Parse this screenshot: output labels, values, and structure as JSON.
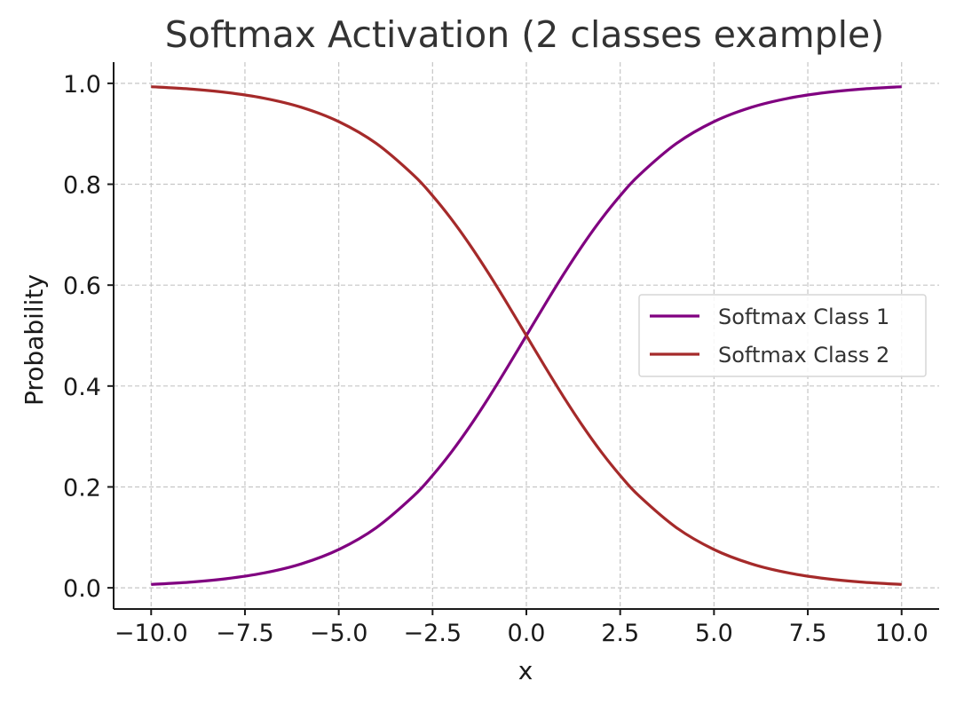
{
  "chart_data": {
    "type": "line",
    "title": "Softmax Activation (2 classes example)",
    "xlabel": "x",
    "ylabel": "Probability",
    "xlim": [
      -11,
      11
    ],
    "ylim": [
      -0.042,
      1.042
    ],
    "grid": true,
    "legend_position": "center-right",
    "x_ticks": [
      -10.0,
      -7.5,
      -5.0,
      -2.5,
      0.0,
      2.5,
      5.0,
      7.5,
      10.0
    ],
    "x_tick_labels": [
      "−10.0",
      "−7.5",
      "−5.0",
      "−2.5",
      "0.0",
      "2.5",
      "5.0",
      "7.5",
      "10.0"
    ],
    "y_ticks": [
      0.0,
      0.2,
      0.4,
      0.6,
      0.8,
      1.0
    ],
    "y_tick_labels": [
      "0.0",
      "0.2",
      "0.4",
      "0.6",
      "0.8",
      "1.0"
    ],
    "x": [
      -10.0,
      -9.0,
      -8.0,
      -7.0,
      -6.0,
      -5.0,
      -4.0,
      -3.0,
      -2.5,
      -2.0,
      -1.5,
      -1.0,
      -0.5,
      0.0,
      0.5,
      1.0,
      1.5,
      2.0,
      2.5,
      3.0,
      4.0,
      5.0,
      6.0,
      7.0,
      8.0,
      9.0,
      10.0
    ],
    "series": [
      {
        "name": "Softmax Class 1",
        "color": "#800080",
        "values": [
          0.0067,
          0.011,
          0.018,
          0.0293,
          0.0474,
          0.0759,
          0.1192,
          0.1824,
          0.2227,
          0.2689,
          0.3208,
          0.3775,
          0.4378,
          0.5,
          0.5622,
          0.6225,
          0.6792,
          0.7311,
          0.7773,
          0.8176,
          0.8808,
          0.9241,
          0.9526,
          0.9707,
          0.982,
          0.989,
          0.9933
        ]
      },
      {
        "name": "Softmax Class 2",
        "color": "#A52A2A",
        "values": [
          0.9933,
          0.989,
          0.982,
          0.9707,
          0.9526,
          0.9241,
          0.8808,
          0.8176,
          0.7773,
          0.7311,
          0.6792,
          0.6225,
          0.5622,
          0.5,
          0.4378,
          0.3775,
          0.3208,
          0.2689,
          0.2227,
          0.1824,
          0.1192,
          0.0759,
          0.0474,
          0.0293,
          0.018,
          0.011,
          0.0067
        ]
      }
    ]
  }
}
